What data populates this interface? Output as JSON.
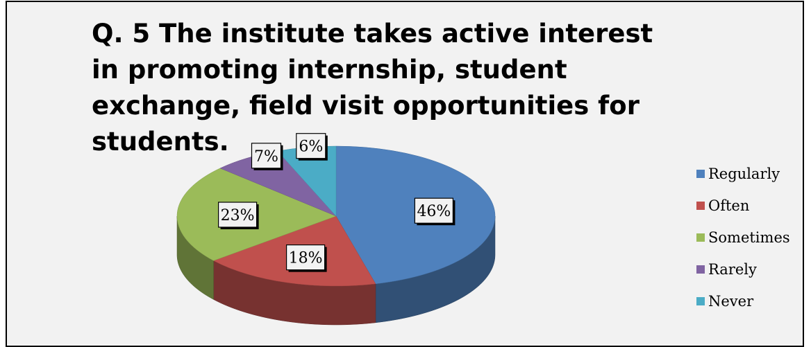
{
  "chart_data": {
    "type": "pie",
    "title": "Q. 5 The institute takes active interest in promoting internship, student exchange, field visit opportunities for students.",
    "categories": [
      "Regularly",
      "Often",
      "Sometimes",
      "Rarely",
      "Never"
    ],
    "values": [
      46,
      18,
      23,
      7,
      6
    ],
    "labels": [
      "46%",
      "18%",
      "23%",
      "7%",
      "6%"
    ],
    "colors": [
      "#4f81bd",
      "#c0504d",
      "#9bbb59",
      "#8064a2",
      "#4bacc6"
    ],
    "style": "3d",
    "legend_position": "right"
  }
}
